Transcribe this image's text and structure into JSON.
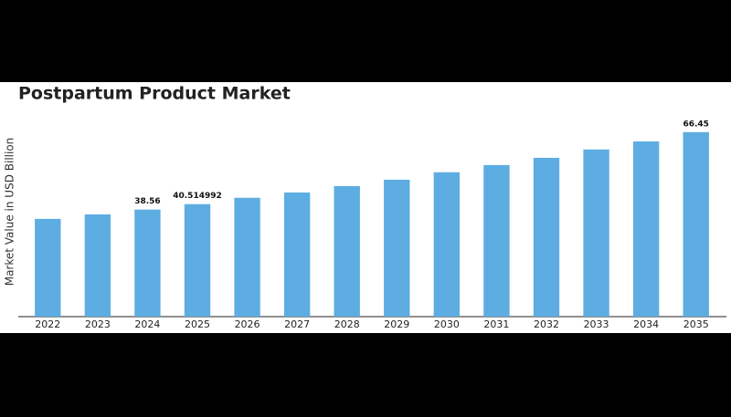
{
  "chart_data": {
    "type": "bar",
    "title": "Postpartum Product Market",
    "y_label": "Market Value in USD Billion",
    "categories": [
      "2022",
      "2023",
      "2024",
      "2025",
      "2026",
      "2027",
      "2028",
      "2029",
      "2030",
      "2031",
      "2032",
      "2033",
      "2034",
      "2035"
    ],
    "values": [
      35.2,
      36.8,
      38.56,
      40.514992,
      42.8,
      44.7,
      47.0,
      49.3,
      52.0,
      54.6,
      57.2,
      60.2,
      63.1,
      66.45
    ],
    "value_labels": [
      null,
      null,
      "38.56",
      "40.514992",
      null,
      null,
      null,
      null,
      null,
      null,
      null,
      null,
      null,
      "66.45"
    ],
    "color": "#5dade2",
    "ylim": [
      0,
      70
    ]
  }
}
